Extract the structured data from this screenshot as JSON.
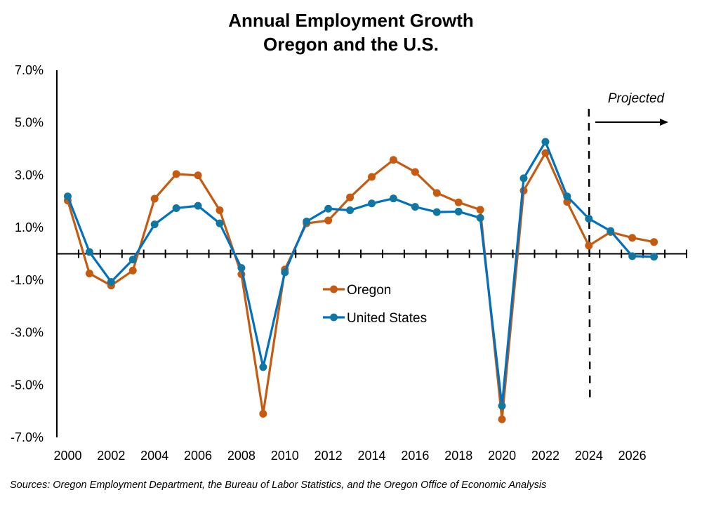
{
  "chart_data": {
    "type": "line",
    "title": [
      "Annual Employment Growth",
      "Oregon and the U.S."
    ],
    "xlabel": "",
    "ylabel": "",
    "x": [
      2000,
      2001,
      2002,
      2003,
      2004,
      2005,
      2006,
      2007,
      2008,
      2009,
      2010,
      2011,
      2012,
      2013,
      2014,
      2015,
      2016,
      2017,
      2018,
      2019,
      2020,
      2021,
      2022,
      2023,
      2024,
      2025,
      2026,
      2027
    ],
    "x_tick_labels": [
      "2000",
      "2002",
      "2004",
      "2006",
      "2008",
      "2010",
      "2012",
      "2014",
      "2016",
      "2018",
      "2020",
      "2022",
      "2024",
      "2026"
    ],
    "x_range": [
      2000,
      2028
    ],
    "ylim": [
      -7.0,
      7.0
    ],
    "y_ticks": [
      7.0,
      5.0,
      3.0,
      1.0,
      -1.0,
      -3.0,
      -5.0,
      -7.0
    ],
    "y_tick_labels": [
      "7.0%",
      "5.0%",
      "3.0%",
      "1.0%",
      "-1.0%",
      "-3.0%",
      "-5.0%",
      "-7.0%"
    ],
    "grid": false,
    "series": [
      {
        "name": "Oregon",
        "color": "#C55A11",
        "values": [
          2.03,
          -0.75,
          -1.21,
          -0.64,
          2.1,
          3.04,
          2.99,
          1.66,
          -0.78,
          -6.1,
          -0.6,
          1.16,
          1.27,
          2.15,
          2.93,
          3.58,
          3.12,
          2.32,
          1.96,
          1.68,
          -6.31,
          2.41,
          3.84,
          1.98,
          0.31,
          0.83,
          0.61,
          0.45
        ]
      },
      {
        "name": "United States",
        "color": "#0070C0",
        "marker_color": "#1177A0",
        "values": [
          2.19,
          0.07,
          -1.07,
          -0.22,
          1.12,
          1.74,
          1.83,
          1.16,
          -0.54,
          -4.32,
          -0.71,
          1.23,
          1.72,
          1.66,
          1.92,
          2.11,
          1.79,
          1.59,
          1.61,
          1.37,
          -5.8,
          2.88,
          4.27,
          2.19,
          1.34,
          0.87,
          -0.09,
          -0.11
        ]
      }
    ],
    "legend": {
      "placement": "center",
      "entries": [
        "Oregon",
        "United States"
      ]
    },
    "annotations": {
      "projection_start_year": 2024,
      "projection_label": "Projected"
    },
    "source": "Sources: Oregon Employment Department, the Bureau of Labor Statistics, and the Oregon Office of Economic Analysis"
  }
}
